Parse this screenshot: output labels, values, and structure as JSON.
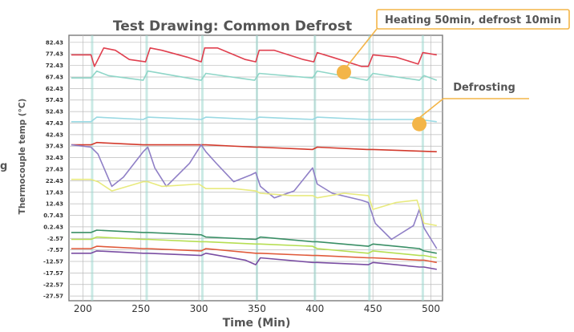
{
  "chart_data": {
    "type": "line",
    "title": "Test Drawing: Common Defrost",
    "xlabel": "Time (Min)",
    "ylabel": "Thermocouple temp (°C)",
    "left_edge_fragment": "g",
    "xlim": [
      188,
      510
    ],
    "ylim": [
      -29.6,
      85.5
    ],
    "x_ticks": [
      200,
      250,
      300,
      350,
      400,
      450,
      500
    ],
    "y_ticks": [
      "82.43",
      "77.43",
      "72.43",
      "67.43",
      "62.43",
      "57.43",
      "52.43",
      "47.43",
      "42.43",
      "37.43",
      "32.43",
      "27.43",
      "22.43",
      "17.43",
      "12.43",
      "0.7.43",
      "0.2.43",
      "-2.57",
      "-7.57",
      "-12.57",
      "-17.57",
      "-22.57",
      "-27.57"
    ],
    "y_tick_values": [
      82.43,
      77.43,
      72.43,
      67.43,
      62.43,
      57.43,
      52.43,
      47.43,
      42.43,
      37.43,
      32.43,
      27.43,
      22.43,
      17.43,
      12.43,
      7.43,
      2.43,
      -2.57,
      -7.57,
      -12.57,
      -17.57,
      -22.57,
      -27.57
    ],
    "grid": true,
    "defrost_times": [
      208,
      255,
      303,
      350,
      400,
      447,
      493
    ],
    "series": [
      {
        "color": "#e0404f",
        "values": [
          [
            190,
            77
          ],
          [
            207,
            77
          ],
          [
            210,
            72
          ],
          [
            218,
            80
          ],
          [
            228,
            79
          ],
          [
            240,
            75
          ],
          [
            254,
            74
          ],
          [
            258,
            80
          ],
          [
            268,
            79
          ],
          [
            290,
            76
          ],
          [
            302,
            74
          ],
          [
            305,
            80
          ],
          [
            316,
            80
          ],
          [
            340,
            75
          ],
          [
            349,
            74
          ],
          [
            352,
            79
          ],
          [
            365,
            79
          ],
          [
            390,
            75
          ],
          [
            399,
            74
          ],
          [
            402,
            78
          ],
          [
            415,
            76
          ],
          [
            440,
            72
          ],
          [
            446,
            72
          ],
          [
            450,
            77
          ],
          [
            470,
            76
          ],
          [
            489,
            73
          ],
          [
            493,
            78
          ],
          [
            505,
            77
          ]
        ]
      },
      {
        "color": "#8fd6c8",
        "values": [
          [
            190,
            67
          ],
          [
            207,
            67
          ],
          [
            212,
            70
          ],
          [
            222,
            68
          ],
          [
            252,
            66
          ],
          [
            256,
            70
          ],
          [
            290,
            67
          ],
          [
            302,
            66
          ],
          [
            306,
            69
          ],
          [
            348,
            66
          ],
          [
            352,
            69
          ],
          [
            398,
            67
          ],
          [
            402,
            70
          ],
          [
            445,
            66
          ],
          [
            450,
            69
          ],
          [
            490,
            66
          ],
          [
            494,
            68
          ],
          [
            505,
            66
          ]
        ]
      },
      {
        "color": "#9ad9e3",
        "values": [
          [
            190,
            48
          ],
          [
            207,
            48
          ],
          [
            212,
            50
          ],
          [
            252,
            49
          ],
          [
            256,
            50
          ],
          [
            302,
            49
          ],
          [
            306,
            50
          ],
          [
            348,
            49
          ],
          [
            352,
            50
          ],
          [
            398,
            49
          ],
          [
            402,
            50
          ],
          [
            445,
            49
          ],
          [
            450,
            49
          ],
          [
            490,
            49
          ],
          [
            505,
            48
          ]
        ]
      },
      {
        "color": "#d33a2c",
        "values": [
          [
            190,
            38
          ],
          [
            207,
            38
          ],
          [
            212,
            39
          ],
          [
            252,
            38
          ],
          [
            256,
            38
          ],
          [
            302,
            38
          ],
          [
            306,
            38
          ],
          [
            348,
            37
          ],
          [
            352,
            37
          ],
          [
            398,
            36
          ],
          [
            402,
            37
          ],
          [
            445,
            36
          ],
          [
            450,
            36
          ],
          [
            505,
            35
          ]
        ]
      },
      {
        "color": "#8f7fc6",
        "values": [
          [
            190,
            38
          ],
          [
            207,
            37
          ],
          [
            213,
            34
          ],
          [
            225,
            20
          ],
          [
            235,
            24
          ],
          [
            252,
            35
          ],
          [
            256,
            37
          ],
          [
            262,
            28
          ],
          [
            272,
            20
          ],
          [
            292,
            30
          ],
          [
            302,
            38
          ],
          [
            306,
            35
          ],
          [
            315,
            30
          ],
          [
            330,
            22
          ],
          [
            345,
            25
          ],
          [
            349,
            26
          ],
          [
            353,
            20
          ],
          [
            365,
            15
          ],
          [
            382,
            18
          ],
          [
            398,
            28
          ],
          [
            402,
            21
          ],
          [
            415,
            17
          ],
          [
            440,
            14
          ],
          [
            446,
            13
          ],
          [
            452,
            4
          ],
          [
            466,
            -3
          ],
          [
            485,
            3
          ],
          [
            490,
            10
          ],
          [
            494,
            2
          ],
          [
            505,
            -7
          ]
        ]
      },
      {
        "color": "#e8ea7e",
        "values": [
          [
            190,
            23
          ],
          [
            207,
            23
          ],
          [
            213,
            22
          ],
          [
            225,
            18
          ],
          [
            252,
            22
          ],
          [
            256,
            22
          ],
          [
            268,
            20
          ],
          [
            300,
            21
          ],
          [
            306,
            19
          ],
          [
            330,
            19
          ],
          [
            349,
            18
          ],
          [
            353,
            17
          ],
          [
            380,
            16
          ],
          [
            398,
            16
          ],
          [
            402,
            15
          ],
          [
            425,
            17
          ],
          [
            446,
            16
          ],
          [
            450,
            10
          ],
          [
            470,
            13
          ],
          [
            488,
            14
          ],
          [
            494,
            4
          ],
          [
            505,
            3
          ]
        ]
      },
      {
        "color": "#3a8f66",
        "values": [
          [
            190,
            0
          ],
          [
            207,
            0
          ],
          [
            212,
            1
          ],
          [
            252,
            0
          ],
          [
            256,
            0
          ],
          [
            302,
            -1
          ],
          [
            306,
            -2
          ],
          [
            349,
            -3
          ],
          [
            353,
            -2
          ],
          [
            398,
            -4
          ],
          [
            402,
            -4
          ],
          [
            446,
            -6
          ],
          [
            450,
            -5
          ],
          [
            490,
            -7
          ],
          [
            494,
            -8
          ],
          [
            505,
            -9
          ]
        ]
      },
      {
        "color": "#b6de52",
        "values": [
          [
            190,
            -3
          ],
          [
            207,
            -3
          ],
          [
            212,
            -2
          ],
          [
            252,
            -3
          ],
          [
            256,
            -3
          ],
          [
            302,
            -4
          ],
          [
            306,
            -4
          ],
          [
            349,
            -5
          ],
          [
            353,
            -5
          ],
          [
            398,
            -6
          ],
          [
            402,
            -7
          ],
          [
            446,
            -9
          ],
          [
            450,
            -8
          ],
          [
            490,
            -10
          ],
          [
            494,
            -10
          ],
          [
            505,
            -11
          ]
        ]
      },
      {
        "color": "#e05a3a",
        "values": [
          [
            190,
            -7
          ],
          [
            207,
            -7
          ],
          [
            212,
            -6
          ],
          [
            252,
            -7
          ],
          [
            256,
            -7
          ],
          [
            302,
            -8
          ],
          [
            306,
            -7
          ],
          [
            349,
            -9
          ],
          [
            353,
            -9
          ],
          [
            398,
            -10
          ],
          [
            402,
            -10
          ],
          [
            446,
            -11
          ],
          [
            450,
            -11
          ],
          [
            490,
            -12
          ],
          [
            494,
            -12
          ],
          [
            505,
            -13
          ]
        ]
      },
      {
        "color": "#7a4ea3",
        "values": [
          [
            190,
            -9
          ],
          [
            207,
            -9
          ],
          [
            212,
            -8
          ],
          [
            252,
            -9
          ],
          [
            256,
            -9
          ],
          [
            302,
            -10
          ],
          [
            306,
            -9
          ],
          [
            340,
            -12
          ],
          [
            349,
            -14
          ],
          [
            353,
            -11
          ],
          [
            398,
            -13
          ],
          [
            402,
            -13
          ],
          [
            446,
            -14
          ],
          [
            450,
            -13
          ],
          [
            490,
            -15
          ],
          [
            494,
            -15
          ],
          [
            505,
            -16
          ]
        ]
      }
    ],
    "annotations": [
      {
        "text": "Heating 50min, defrost 10min",
        "marker_x": 425,
        "marker_y": 69.5
      },
      {
        "text": "Defrosting",
        "marker_x": 490,
        "marker_y": 47
      }
    ],
    "colors": {
      "callout_marker": "#f3b548",
      "callout_line": "#f3b548",
      "axis_text": "#555555",
      "grid": "#bbbbbb"
    }
  }
}
